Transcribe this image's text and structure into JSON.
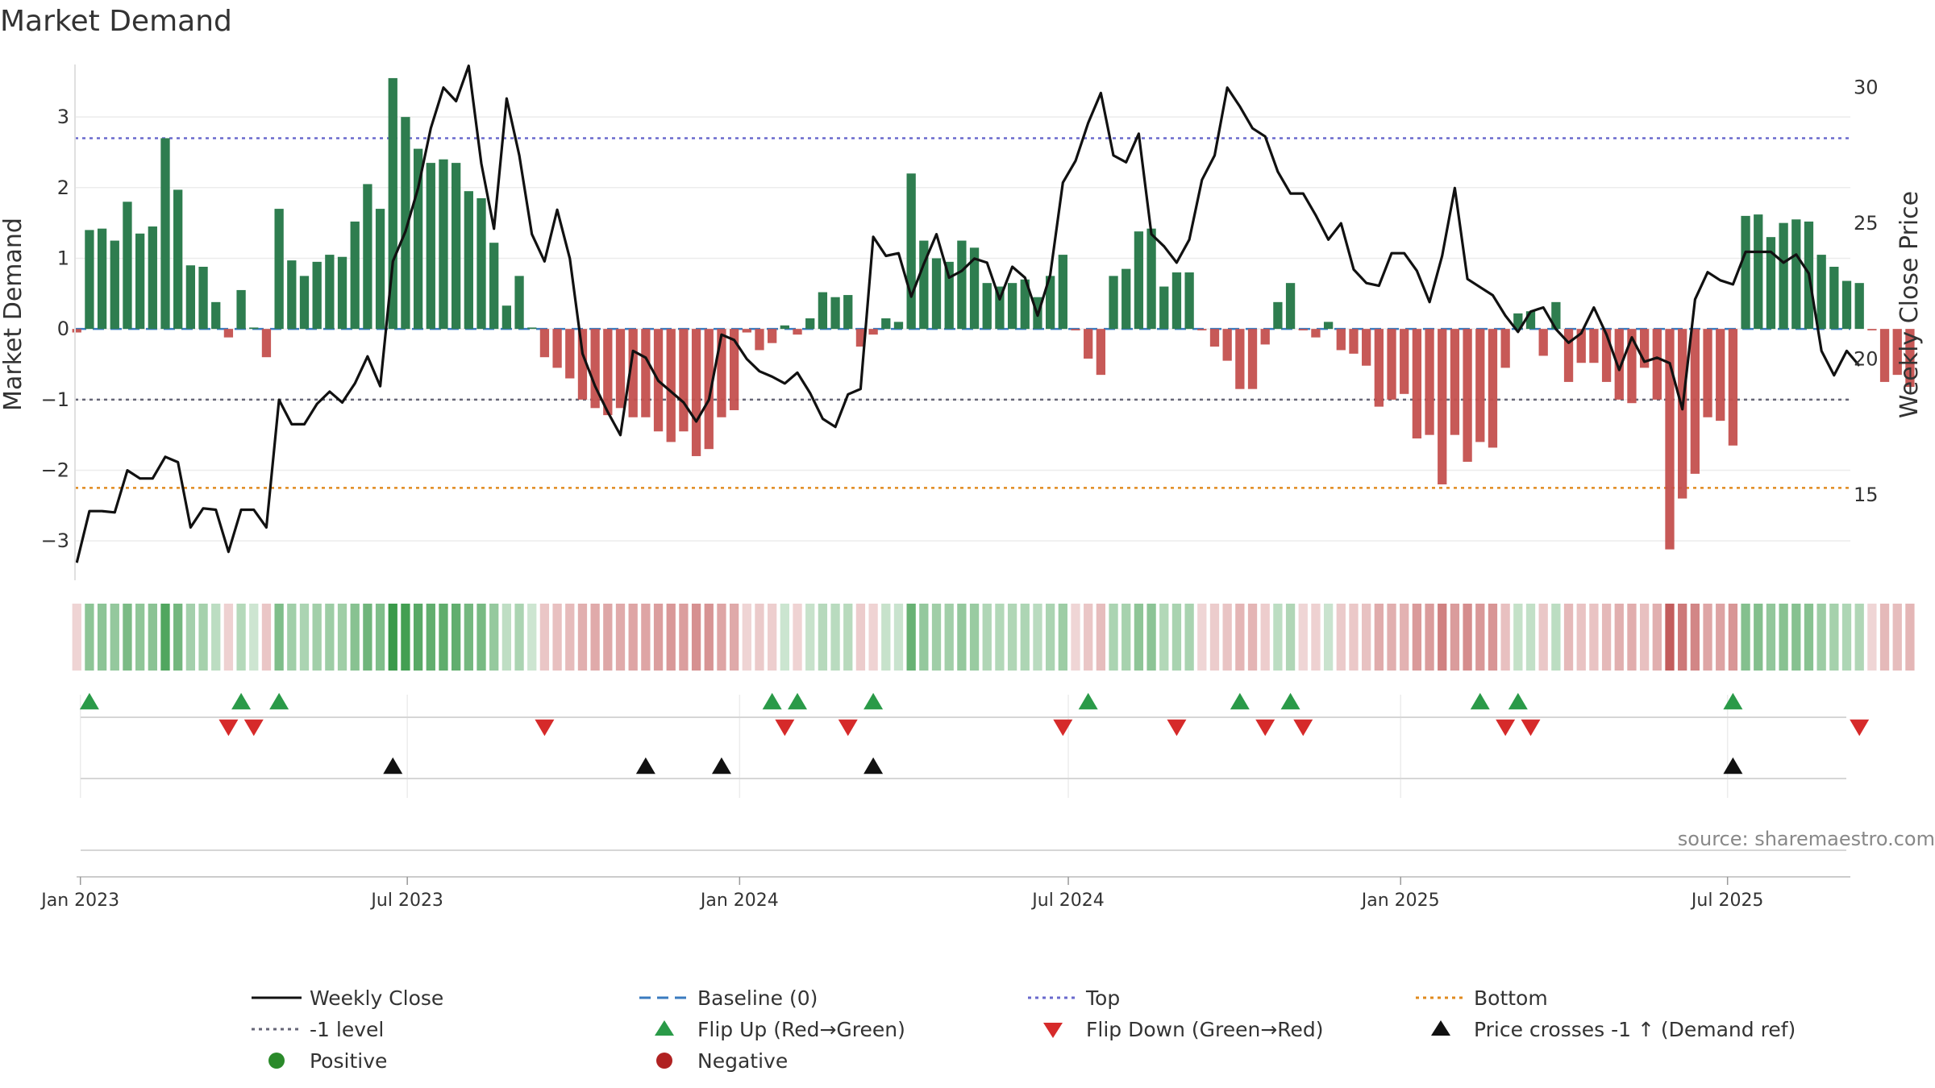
{
  "chart_data": {
    "type": "bar+line",
    "title": "Market Demand",
    "ylabel_left": "Market Demand",
    "ylabel_right": "Weekly Close Price",
    "source": "source: sharemaestro.com",
    "ylim_left": [
      -3.5,
      3.8
    ],
    "ylim_right": [
      12,
      31
    ],
    "yticks_left": [
      3,
      2,
      1,
      0,
      -1,
      -2,
      -3
    ],
    "yticks_left_labels": [
      "3",
      "2",
      "1",
      "0",
      "−1",
      "−2",
      "−3"
    ],
    "yticks_right": [
      30,
      25,
      20,
      15
    ],
    "yticks_right_labels": [
      "30",
      "25",
      "20",
      "15"
    ],
    "x_start": "2022-12-30",
    "x_step_days": 7,
    "x_range": [
      "2022-12-29",
      "2025-09-07"
    ],
    "x_ticks": [
      {
        "date": "2023-01-01",
        "label": "Jan 2023"
      },
      {
        "date": "2023-07-01",
        "label": "Jul 2023"
      },
      {
        "date": "2024-01-01",
        "label": "Jan 2024"
      },
      {
        "date": "2024-07-01",
        "label": "Jul 2024"
      },
      {
        "date": "2025-01-01",
        "label": "Jan 2025"
      },
      {
        "date": "2025-07-01",
        "label": "Jul 2025"
      }
    ],
    "reference_lines": {
      "baseline": 0,
      "minus_one": -1,
      "top": 2.7,
      "bottom": -2.25
    },
    "demand": [
      -0.05,
      1.4,
      1.42,
      1.25,
      1.8,
      1.35,
      1.45,
      2.7,
      1.97,
      0.9,
      0.88,
      0.38,
      -0.12,
      0.55,
      0.02,
      -0.4,
      1.7,
      0.97,
      0.75,
      0.95,
      1.05,
      1.02,
      1.52,
      2.05,
      1.7,
      3.55,
      3.0,
      2.55,
      2.35,
      2.4,
      2.35,
      1.95,
      1.85,
      1.22,
      0.33,
      0.75,
      0.02,
      -0.4,
      -0.55,
      -0.7,
      -1.0,
      -1.12,
      -1.22,
      -1.12,
      -1.25,
      -1.25,
      -1.45,
      -1.6,
      -1.45,
      -1.8,
      -1.7,
      -1.25,
      -1.15,
      -0.05,
      -0.3,
      -0.2,
      0.05,
      -0.08,
      0.15,
      0.52,
      0.45,
      0.48,
      -0.25,
      -0.08,
      0.15,
      0.1,
      2.2,
      1.25,
      1.0,
      0.95,
      1.25,
      1.15,
      0.65,
      0.6,
      0.65,
      0.7,
      0.45,
      0.75,
      1.05,
      -0.02,
      -0.42,
      -0.65,
      0.75,
      0.85,
      1.38,
      1.42,
      0.6,
      0.8,
      0.8,
      -0.02,
      -0.25,
      -0.45,
      -0.85,
      -0.85,
      -0.22,
      0.38,
      0.65,
      -0.02,
      -0.12,
      0.1,
      -0.3,
      -0.35,
      -0.52,
      -1.1,
      -1.0,
      -0.92,
      -1.55,
      -1.5,
      -2.2,
      -1.5,
      -1.88,
      -1.6,
      -1.68,
      -0.55,
      0.22,
      0.25,
      -0.38,
      0.38,
      -0.75,
      -0.48,
      -0.48,
      -0.75,
      -1.0,
      -1.05,
      -0.55,
      -1.0,
      -3.12,
      -2.4,
      -2.05,
      -1.25,
      -1.3,
      -1.65,
      1.6,
      1.62,
      1.3,
      1.5,
      1.55,
      1.52,
      1.05,
      0.88,
      0.68,
      0.65,
      -0.02,
      -0.75,
      -0.65,
      -0.82
    ],
    "price": [
      12.5,
      14.4,
      14.4,
      14.35,
      15.9,
      15.6,
      15.6,
      16.4,
      16.2,
      13.8,
      14.5,
      14.45,
      12.9,
      14.45,
      14.45,
      13.8,
      18.5,
      17.6,
      17.6,
      18.35,
      18.8,
      18.4,
      19.1,
      20.1,
      19.0,
      23.6,
      24.7,
      26.3,
      28.5,
      30.0,
      29.5,
      30.8,
      27.2,
      24.8,
      29.6,
      27.5,
      24.6,
      23.6,
      25.5,
      23.7,
      20.2,
      19.0,
      18.05,
      17.2,
      20.3,
      20.05,
      19.2,
      18.8,
      18.4,
      17.7,
      18.5,
      20.9,
      20.7,
      20.0,
      19.55,
      19.35,
      19.1,
      19.5,
      18.75,
      17.8,
      17.5,
      18.7,
      18.9,
      24.5,
      23.8,
      23.9,
      22.3,
      23.5,
      24.6,
      23.0,
      23.25,
      23.7,
      23.55,
      22.2,
      23.4,
      23.0,
      21.6,
      23.1,
      26.5,
      27.3,
      28.7,
      29.8,
      27.5,
      27.25,
      28.3,
      24.6,
      24.15,
      23.55,
      24.4,
      26.6,
      27.5,
      30.0,
      29.3,
      28.5,
      28.2,
      26.9,
      26.1,
      26.1,
      25.3,
      24.4,
      25.0,
      23.3,
      22.8,
      22.7,
      23.9,
      23.9,
      23.25,
      22.1,
      23.8,
      26.3,
      22.95,
      22.65,
      22.35,
      21.6,
      21.0,
      21.75,
      21.9,
      21.1,
      20.6,
      20.95,
      21.9,
      20.9,
      19.6,
      20.8,
      19.9,
      20.05,
      19.85,
      18.15,
      22.2,
      23.2,
      22.9,
      22.75,
      23.95,
      23.95,
      23.95,
      23.55,
      23.85,
      23.15,
      20.3,
      19.4,
      20.3,
      19.75
    ],
    "heat_strip": {
      "positive_color": "#3a9a4a",
      "negative_color": "#c25a5a"
    },
    "markers": {
      "flip_up": [
        1,
        13,
        16,
        55,
        57,
        63,
        80,
        92,
        96,
        111,
        114,
        131
      ],
      "flip_down": [
        12,
        14,
        37,
        56,
        61,
        78,
        87,
        94,
        97,
        113,
        115,
        141
      ],
      "price_cross": [
        25,
        45,
        51,
        63,
        131
      ]
    },
    "colors": {
      "positive": "#2e7d4f",
      "negative": "#c4504e",
      "weekly_close": "#111111",
      "baseline": "#3a7bbf",
      "top": "#6a6acd",
      "bottom": "#e08a1e",
      "minus_one": "#666677",
      "flip_up": "#2a9a48",
      "flip_down": "#d62a2a",
      "price_cross": "#111111",
      "positive_dot": "#2a8a2a",
      "negative_dot": "#b02222"
    },
    "legend": [
      {
        "key": "weekly_close",
        "label": "Weekly Close",
        "symbol": "solid"
      },
      {
        "key": "baseline",
        "label": "Baseline (0)",
        "symbol": "dashed"
      },
      {
        "key": "top",
        "label": "Top",
        "symbol": "dotted"
      },
      {
        "key": "bottom",
        "label": "Bottom",
        "symbol": "dotted"
      },
      {
        "key": "minus_one",
        "label": "-1 level",
        "symbol": "dotted"
      },
      {
        "key": "flip_up",
        "label": "Flip Up (Red→Green)",
        "symbol": "triangle-up"
      },
      {
        "key": "flip_down",
        "label": "Flip Down (Green→Red)",
        "symbol": "triangle-down"
      },
      {
        "key": "price_cross",
        "label": "Price crosses -1 ↑ (Demand ref)",
        "symbol": "triangle-up"
      },
      {
        "key": "positive_dot",
        "label": "Positive",
        "symbol": "circle"
      },
      {
        "key": "negative_dot",
        "label": "Negative",
        "symbol": "circle"
      }
    ]
  }
}
